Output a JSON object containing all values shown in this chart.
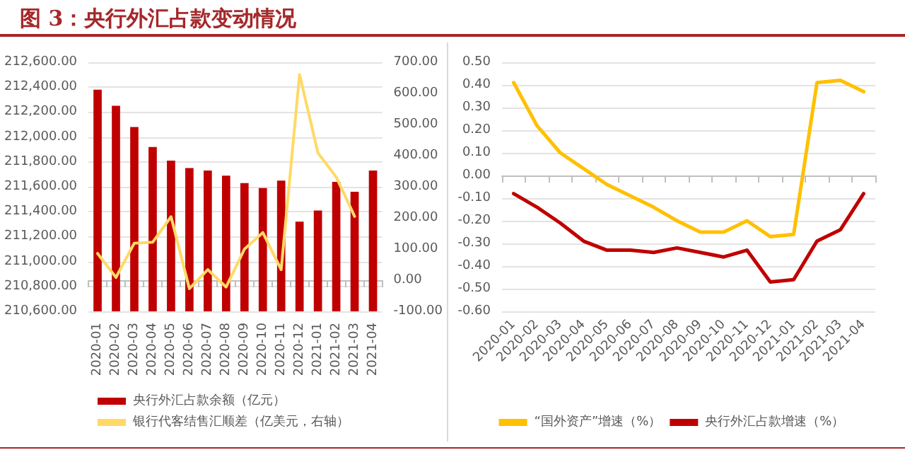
{
  "chart_data": [
    {
      "type": "bar",
      "title": "图 3：央行外汇占款变动情况",
      "categories": [
        "2020-01",
        "2020-02",
        "2020-03",
        "2020-04",
        "2020-05",
        "2020-06",
        "2020-07",
        "2020-08",
        "2020-09",
        "2020-10",
        "2020-11",
        "2020-12",
        "2021-01",
        "2021-02",
        "2021-03",
        "2021-04"
      ],
      "series": [
        {
          "name": "央行外汇占款余额（亿元）",
          "color": "#c00000",
          "values": [
            212380,
            212250,
            212080,
            211920,
            211810,
            211750,
            211730,
            211690,
            211630,
            211590,
            211650,
            211320,
            211410,
            211640,
            211560,
            211730
          ]
        },
        {
          "name": "银行代客结售汇顺差（亿美元，右轴）",
          "type": "line",
          "axis": "y2",
          "color": "#ffd966",
          "values": [
            86,
            9,
            119,
            122,
            204,
            -27,
            34,
            -22,
            100,
            153,
            34,
            661,
            409,
            331,
            205,
            null
          ]
        }
      ],
      "ylim": [
        210600,
        212600
      ],
      "yticks": [
        {
          "value": 210600,
          "label": "210,600.00"
        },
        {
          "value": 210800,
          "label": "210,800.00"
        },
        {
          "value": 211000,
          "label": "211,000.00"
        },
        {
          "value": 211200,
          "label": "211,200.00"
        },
        {
          "value": 211400,
          "label": "211,400.00"
        },
        {
          "value": 211600,
          "label": "211,600.00"
        },
        {
          "value": 211800,
          "label": "211,800.00"
        },
        {
          "value": 212000,
          "label": "212,000.00"
        },
        {
          "value": 212200,
          "label": "212,200.00"
        },
        {
          "value": 212400,
          "label": "212,400.00"
        },
        {
          "value": 212600,
          "label": "212,600.00"
        }
      ],
      "y2lim": [
        -100,
        700
      ],
      "y2ticks": [
        {
          "value": -100,
          "label": "-100.00"
        },
        {
          "value": 0,
          "label": "0.00"
        },
        {
          "value": 100,
          "label": "100.00"
        },
        {
          "value": 200,
          "label": "200.00"
        },
        {
          "value": 300,
          "label": "300.00"
        },
        {
          "value": 400,
          "label": "400.00"
        },
        {
          "value": 500,
          "label": "500.00"
        },
        {
          "value": 600,
          "label": "600.00"
        },
        {
          "value": 700,
          "label": "700.00"
        }
      ],
      "grid": "y",
      "legend": "bottom",
      "marker": "none"
    },
    {
      "type": "line",
      "categories": [
        "2020-01",
        "2020-02",
        "2020-03",
        "2020-04",
        "2020-05",
        "2020-06",
        "2020-07",
        "2020-08",
        "2020-09",
        "2020-10",
        "2020-11",
        "2020-12",
        "2021-01",
        "2021-02",
        "2021-03",
        "2021-04"
      ],
      "series": [
        {
          "name": "“国外资产”增速（%）",
          "color": "#ffc000",
          "values": [
            0.41,
            0.22,
            0.1,
            0.03,
            -0.04,
            -0.09,
            -0.14,
            -0.2,
            -0.25,
            -0.25,
            -0.2,
            -0.27,
            -0.26,
            0.41,
            0.42,
            0.37
          ]
        },
        {
          "name": "央行外汇占款增速（%）",
          "color": "#c00000",
          "values": [
            -0.08,
            -0.14,
            -0.21,
            -0.29,
            -0.33,
            -0.33,
            -0.34,
            -0.32,
            -0.34,
            -0.36,
            -0.33,
            -0.47,
            -0.46,
            -0.29,
            -0.24,
            -0.08
          ]
        }
      ],
      "ylim": [
        -0.6,
        0.5
      ],
      "yticks": [
        {
          "value": -0.6,
          "label": "-0.60"
        },
        {
          "value": -0.5,
          "label": "-0.50"
        },
        {
          "value": -0.4,
          "label": "-0.40"
        },
        {
          "value": -0.3,
          "label": "-0.30"
        },
        {
          "value": -0.2,
          "label": "-0.20"
        },
        {
          "value": -0.1,
          "label": "-0.10"
        },
        {
          "value": 0,
          "label": "0.00"
        },
        {
          "value": 0.1,
          "label": "0.10"
        },
        {
          "value": 0.2,
          "label": "0.20"
        },
        {
          "value": 0.3,
          "label": "0.30"
        },
        {
          "value": 0.4,
          "label": "0.40"
        },
        {
          "value": 0.5,
          "label": "0.50"
        }
      ],
      "grid": "y",
      "legend": "bottom",
      "marker": "none"
    }
  ]
}
